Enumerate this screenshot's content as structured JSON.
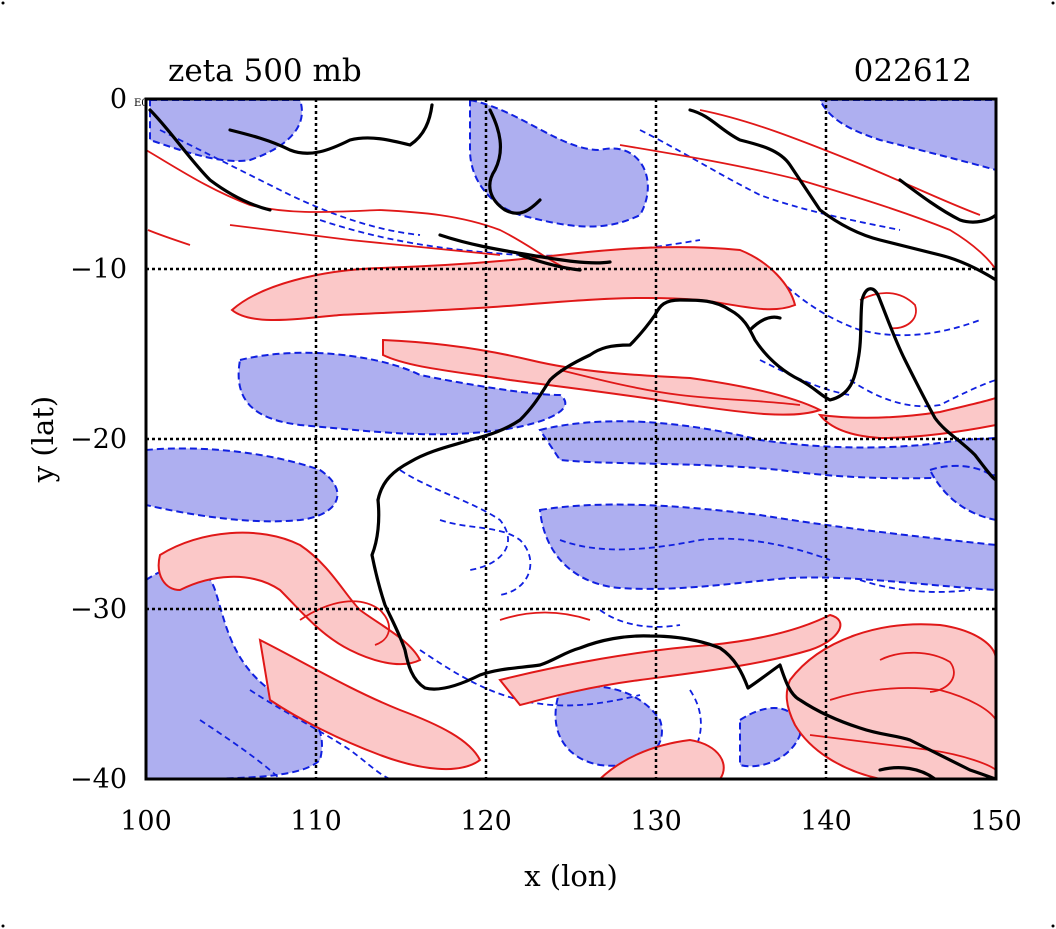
{
  "figure": {
    "title_left": "zeta 500 mb",
    "title_right": "022612",
    "corner_mark": "E0",
    "x_label": "x (lon)",
    "y_label": "y (lat)",
    "x_ticks": [
      "100",
      "110",
      "120",
      "130",
      "140",
      "150"
    ],
    "y_ticks": [
      "0",
      "−10",
      "−20",
      "−30",
      "−40"
    ]
  },
  "map": {
    "lon_range": [
      100,
      150
    ],
    "lat_range": [
      -40,
      0
    ],
    "gridlines_lon": [
      110,
      120,
      130,
      140
    ],
    "gridlines_lat": [
      -10,
      -20,
      -30
    ],
    "grid": true,
    "field": "relative vorticity (zeta) at 500 mb",
    "positive_color": "#e01818",
    "positive_fill": "#fbc8c8",
    "negative_color": "#1020e0",
    "negative_fill": "#aeaff0",
    "coastline_color": "#000000"
  }
}
